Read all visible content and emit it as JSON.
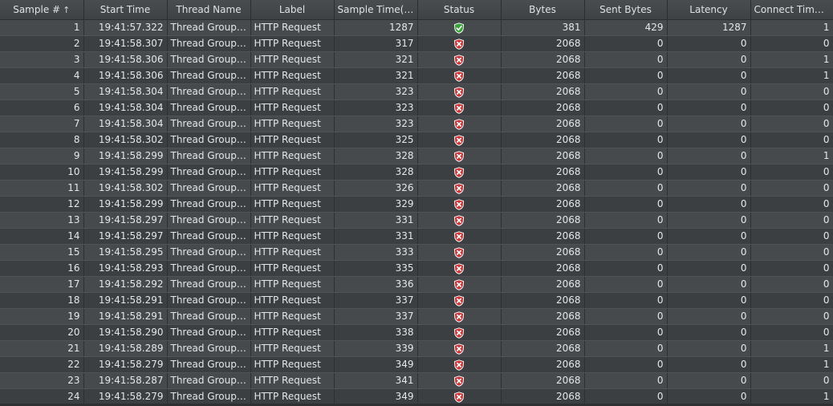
{
  "columns": [
    {
      "label": "Sample #",
      "sort": "↑"
    },
    {
      "label": "Start Time"
    },
    {
      "label": "Thread Name"
    },
    {
      "label": "Label"
    },
    {
      "label": "Sample Time(ms)"
    },
    {
      "label": "Status"
    },
    {
      "label": "Bytes"
    },
    {
      "label": "Sent Bytes"
    },
    {
      "label": "Latency"
    },
    {
      "label": "Connect Time(..."
    }
  ],
  "colors": {
    "success": "#3ca33c",
    "error": "#c8373a"
  },
  "rows": [
    {
      "sample": "1",
      "start": "19:41:57.322",
      "thread": "Thread Group ...",
      "label": "HTTP Request",
      "time": "1287",
      "status": "success",
      "bytes": "381",
      "sent": "429",
      "latency": "1287",
      "connect": "1"
    },
    {
      "sample": "2",
      "start": "19:41:58.307",
      "thread": "Thread Group ...",
      "label": "HTTP Request",
      "time": "317",
      "status": "error",
      "bytes": "2068",
      "sent": "0",
      "latency": "0",
      "connect": "0"
    },
    {
      "sample": "3",
      "start": "19:41:58.306",
      "thread": "Thread Group ...",
      "label": "HTTP Request",
      "time": "321",
      "status": "error",
      "bytes": "2068",
      "sent": "0",
      "latency": "0",
      "connect": "1"
    },
    {
      "sample": "4",
      "start": "19:41:58.306",
      "thread": "Thread Group ...",
      "label": "HTTP Request",
      "time": "321",
      "status": "error",
      "bytes": "2068",
      "sent": "0",
      "latency": "0",
      "connect": "1"
    },
    {
      "sample": "5",
      "start": "19:41:58.304",
      "thread": "Thread Group ...",
      "label": "HTTP Request",
      "time": "323",
      "status": "error",
      "bytes": "2068",
      "sent": "0",
      "latency": "0",
      "connect": "0"
    },
    {
      "sample": "6",
      "start": "19:41:58.304",
      "thread": "Thread Group ...",
      "label": "HTTP Request",
      "time": "323",
      "status": "error",
      "bytes": "2068",
      "sent": "0",
      "latency": "0",
      "connect": "0"
    },
    {
      "sample": "7",
      "start": "19:41:58.304",
      "thread": "Thread Group ...",
      "label": "HTTP Request",
      "time": "323",
      "status": "error",
      "bytes": "2068",
      "sent": "0",
      "latency": "0",
      "connect": "0"
    },
    {
      "sample": "8",
      "start": "19:41:58.302",
      "thread": "Thread Group ...",
      "label": "HTTP Request",
      "time": "325",
      "status": "error",
      "bytes": "2068",
      "sent": "0",
      "latency": "0",
      "connect": "0"
    },
    {
      "sample": "9",
      "start": "19:41:58.299",
      "thread": "Thread Group ...",
      "label": "HTTP Request",
      "time": "328",
      "status": "error",
      "bytes": "2068",
      "sent": "0",
      "latency": "0",
      "connect": "1"
    },
    {
      "sample": "10",
      "start": "19:41:58.299",
      "thread": "Thread Group ...",
      "label": "HTTP Request",
      "time": "328",
      "status": "error",
      "bytes": "2068",
      "sent": "0",
      "latency": "0",
      "connect": "0"
    },
    {
      "sample": "11",
      "start": "19:41:58.302",
      "thread": "Thread Group ...",
      "label": "HTTP Request",
      "time": "326",
      "status": "error",
      "bytes": "2068",
      "sent": "0",
      "latency": "0",
      "connect": "0"
    },
    {
      "sample": "12",
      "start": "19:41:58.299",
      "thread": "Thread Group ...",
      "label": "HTTP Request",
      "time": "329",
      "status": "error",
      "bytes": "2068",
      "sent": "0",
      "latency": "0",
      "connect": "0"
    },
    {
      "sample": "13",
      "start": "19:41:58.297",
      "thread": "Thread Group ...",
      "label": "HTTP Request",
      "time": "331",
      "status": "error",
      "bytes": "2068",
      "sent": "0",
      "latency": "0",
      "connect": "0"
    },
    {
      "sample": "14",
      "start": "19:41:58.297",
      "thread": "Thread Group ...",
      "label": "HTTP Request",
      "time": "331",
      "status": "error",
      "bytes": "2068",
      "sent": "0",
      "latency": "0",
      "connect": "0"
    },
    {
      "sample": "15",
      "start": "19:41:58.295",
      "thread": "Thread Group ...",
      "label": "HTTP Request",
      "time": "333",
      "status": "error",
      "bytes": "2068",
      "sent": "0",
      "latency": "0",
      "connect": "0"
    },
    {
      "sample": "16",
      "start": "19:41:58.293",
      "thread": "Thread Group ...",
      "label": "HTTP Request",
      "time": "335",
      "status": "error",
      "bytes": "2068",
      "sent": "0",
      "latency": "0",
      "connect": "0"
    },
    {
      "sample": "17",
      "start": "19:41:58.292",
      "thread": "Thread Group ...",
      "label": "HTTP Request",
      "time": "336",
      "status": "error",
      "bytes": "2068",
      "sent": "0",
      "latency": "0",
      "connect": "0"
    },
    {
      "sample": "18",
      "start": "19:41:58.291",
      "thread": "Thread Group ...",
      "label": "HTTP Request",
      "time": "337",
      "status": "error",
      "bytes": "2068",
      "sent": "0",
      "latency": "0",
      "connect": "0"
    },
    {
      "sample": "19",
      "start": "19:41:58.291",
      "thread": "Thread Group ...",
      "label": "HTTP Request",
      "time": "337",
      "status": "error",
      "bytes": "2068",
      "sent": "0",
      "latency": "0",
      "connect": "0"
    },
    {
      "sample": "20",
      "start": "19:41:58.290",
      "thread": "Thread Group ...",
      "label": "HTTP Request",
      "time": "338",
      "status": "error",
      "bytes": "2068",
      "sent": "0",
      "latency": "0",
      "connect": "0"
    },
    {
      "sample": "21",
      "start": "19:41:58.289",
      "thread": "Thread Group ...",
      "label": "HTTP Request",
      "time": "339",
      "status": "error",
      "bytes": "2068",
      "sent": "0",
      "latency": "0",
      "connect": "1"
    },
    {
      "sample": "22",
      "start": "19:41:58.279",
      "thread": "Thread Group ...",
      "label": "HTTP Request",
      "time": "349",
      "status": "error",
      "bytes": "2068",
      "sent": "0",
      "latency": "0",
      "connect": "1"
    },
    {
      "sample": "23",
      "start": "19:41:58.287",
      "thread": "Thread Group ...",
      "label": "HTTP Request",
      "time": "341",
      "status": "error",
      "bytes": "2068",
      "sent": "0",
      "latency": "0",
      "connect": "0"
    },
    {
      "sample": "24",
      "start": "19:41:58.279",
      "thread": "Thread Group ...",
      "label": "HTTP Request",
      "time": "349",
      "status": "error",
      "bytes": "2068",
      "sent": "0",
      "latency": "0",
      "connect": "1"
    }
  ]
}
